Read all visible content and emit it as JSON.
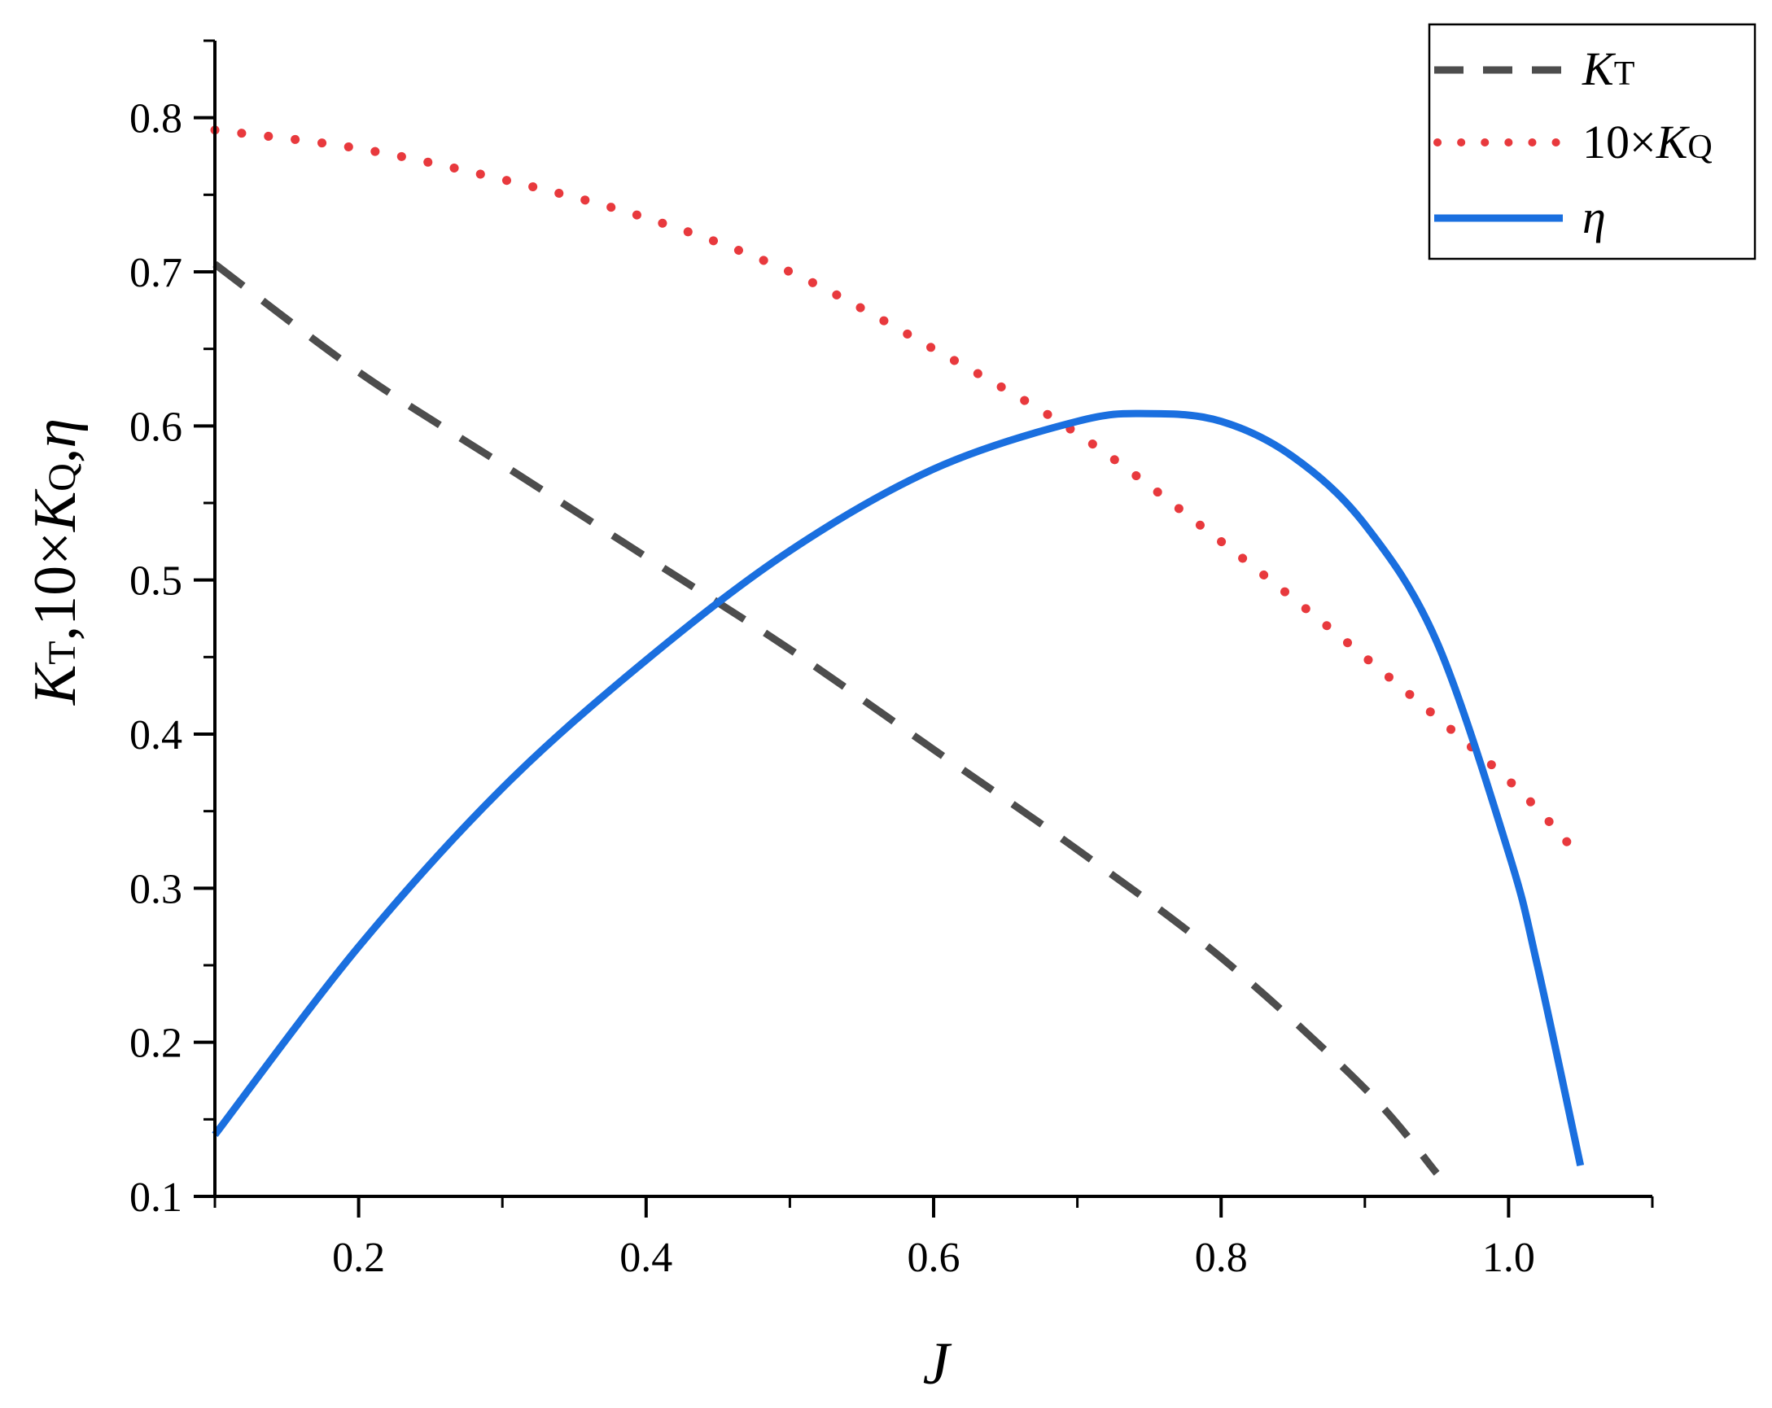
{
  "chart_data": {
    "type": "line",
    "title": "",
    "xlabel": "J",
    "ylabel": {
      "k_symbol": "K",
      "t_sub": "T",
      "comma1": ",",
      "ten_times": "10×",
      "q_symbol": "K",
      "q_sub": "Q",
      "comma2": ",",
      "eta_symbol": "η"
    },
    "xlim": [
      0.1,
      1.1
    ],
    "ylim": [
      0.1,
      0.85
    ],
    "x_ticks": [
      "0.2",
      "0.4",
      "0.6",
      "0.8",
      "1.0"
    ],
    "x_tick_values": [
      0.2,
      0.4,
      0.6,
      0.8,
      1.0
    ],
    "x_minor_step": 0.1,
    "y_ticks": [
      "0.1",
      "0.2",
      "0.3",
      "0.4",
      "0.5",
      "0.6",
      "0.7",
      "0.8"
    ],
    "y_tick_values": [
      0.1,
      0.2,
      0.3,
      0.4,
      0.5,
      0.6,
      0.7,
      0.8
    ],
    "y_minor_step": 0.05,
    "grid": false,
    "legend_position": "top-right",
    "series": [
      {
        "name": "K_T",
        "legend_symbol": "K",
        "legend_sub": "T",
        "legend_prefix": "",
        "style": "dashed",
        "color": "#4d4d4d",
        "x": [
          0.1,
          0.2,
          0.3,
          0.4,
          0.5,
          0.6,
          0.7,
          0.8,
          0.9,
          0.95
        ],
        "y": [
          0.705,
          0.635,
          0.575,
          0.515,
          0.455,
          0.39,
          0.325,
          0.255,
          0.17,
          0.115
        ]
      },
      {
        "name": "10×K_Q",
        "legend_symbol": "K",
        "legend_sub": "Q",
        "legend_prefix": "10×",
        "style": "dotted",
        "color": "#e8393d",
        "x": [
          0.1,
          0.2,
          0.3,
          0.4,
          0.5,
          0.6,
          0.7,
          0.8,
          0.9,
          1.0,
          1.05
        ],
        "y": [
          0.792,
          0.78,
          0.76,
          0.735,
          0.7,
          0.65,
          0.595,
          0.525,
          0.45,
          0.37,
          0.32
        ]
      },
      {
        "name": "η",
        "legend_symbol": "η",
        "legend_sub": "",
        "legend_prefix": "",
        "style": "solid",
        "color": "#1a6fdf",
        "x": [
          0.1,
          0.2,
          0.3,
          0.4,
          0.5,
          0.6,
          0.7,
          0.75,
          0.8,
          0.85,
          0.9,
          0.95,
          1.0,
          1.02,
          1.05
        ],
        "y": [
          0.14,
          0.262,
          0.365,
          0.448,
          0.519,
          0.572,
          0.603,
          0.608,
          0.603,
          0.58,
          0.536,
          0.46,
          0.323,
          0.25,
          0.12
        ]
      }
    ]
  }
}
